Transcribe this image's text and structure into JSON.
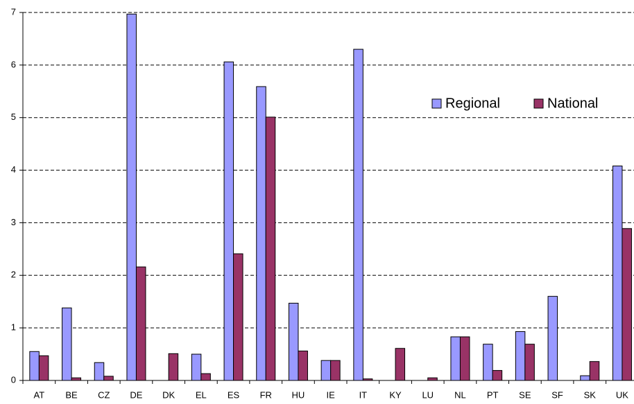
{
  "chart_data": {
    "type": "bar",
    "categories": [
      "AT",
      "BE",
      "CZ",
      "DE",
      "DK",
      "EL",
      "ES",
      "FR",
      "HU",
      "IE",
      "IT",
      "KY",
      "LU",
      "NL",
      "PT",
      "SE",
      "SF",
      "SK",
      "UK"
    ],
    "series": [
      {
        "name": "Regional",
        "color": "#9999ff",
        "values": [
          0.55,
          1.38,
          0.34,
          6.97,
          0,
          0.5,
          6.06,
          5.59,
          1.47,
          0.38,
          6.3,
          0,
          0,
          0.83,
          0.69,
          0.93,
          1.6,
          0.09,
          4.08
        ]
      },
      {
        "name": "National",
        "color": "#993366",
        "values": [
          0.47,
          0.05,
          0.08,
          2.16,
          0.51,
          0.13,
          2.41,
          5.01,
          0.56,
          0.38,
          0.03,
          0.61,
          0.05,
          0.83,
          0.19,
          0.69,
          0,
          0.36,
          2.89
        ]
      }
    ],
    "ylim": [
      0,
      7
    ],
    "yticks": [
      0,
      1,
      2,
      3,
      4,
      5,
      6,
      7
    ],
    "grid": true,
    "legend": "upper right"
  }
}
